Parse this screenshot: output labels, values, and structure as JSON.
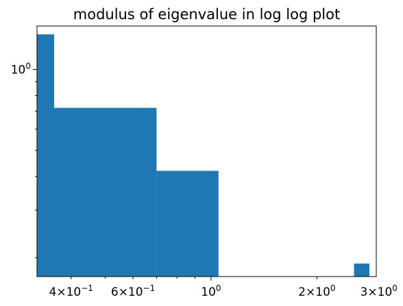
{
  "chart_data": {
    "type": "bar",
    "title": "modulus of eigenvalue in log log plot",
    "xlabel": "",
    "ylabel": "",
    "x_scale": "log",
    "y_scale": "log",
    "xlim": [
      0.32,
      2.95
    ],
    "ylim": [
      0.17,
      1.45
    ],
    "bar_color": "#1f77b4",
    "grid": false,
    "bins": [
      {
        "x0": 0.32,
        "x1": 0.358,
        "value": 1.35
      },
      {
        "x0": 0.358,
        "x1": 0.7,
        "value": 0.72
      },
      {
        "x0": 0.7,
        "x1": 1.05,
        "value": 0.42
      },
      {
        "x0": 2.55,
        "x1": 2.82,
        "value": 0.19
      }
    ],
    "x_ticks": [
      {
        "value": 0.4,
        "base": "4×10",
        "exp": "−1"
      },
      {
        "value": 0.6,
        "base": "6×10",
        "exp": "−1"
      },
      {
        "value": 1.0,
        "base": "10",
        "exp": "0"
      },
      {
        "value": 2.0,
        "base": "2×10",
        "exp": "0"
      },
      {
        "value": 3.0,
        "base": "3×10",
        "exp": "0"
      }
    ],
    "y_ticks": [
      {
        "value": 1.0,
        "base": "10",
        "exp": "0"
      }
    ]
  }
}
